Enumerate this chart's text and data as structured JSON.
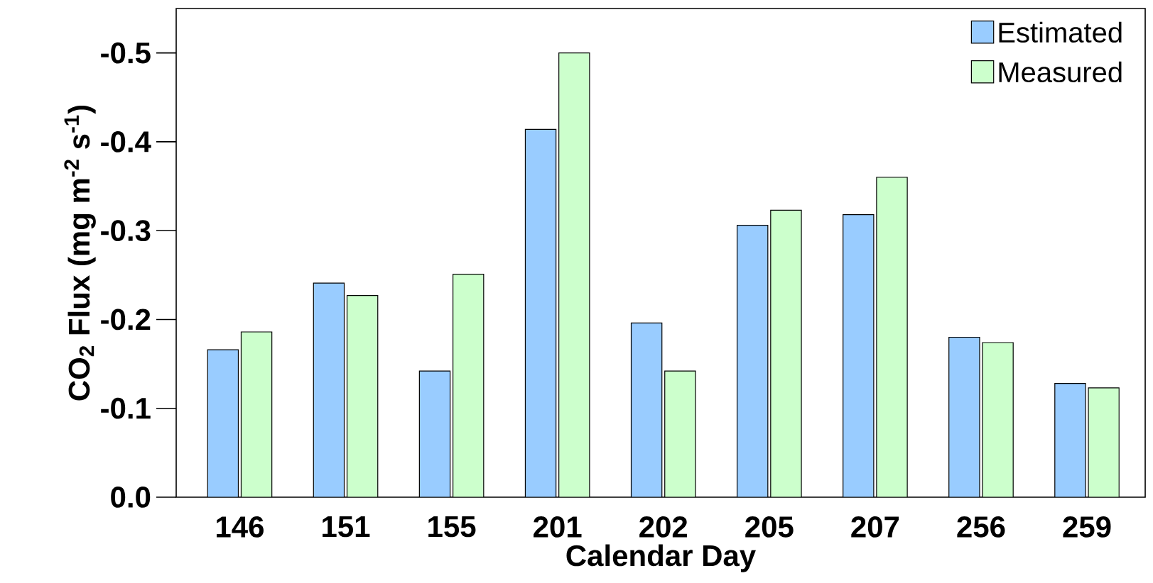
{
  "chart_data": {
    "type": "bar",
    "xlabel": "Calendar Day",
    "ylabel": "CO$_{2}$ Flux (mg  m$^{-2}$ s$^{-1}$)",
    "categories": [
      "146",
      "151",
      "155",
      "201",
      "202",
      "205",
      "207",
      "256",
      "259"
    ],
    "series": [
      {
        "name": "Estimated",
        "color": "#99ccff",
        "values": [
          -0.166,
          -0.241,
          -0.142,
          -0.414,
          -0.196,
          -0.306,
          -0.318,
          -0.18,
          -0.128
        ]
      },
      {
        "name": "Measured",
        "color": "#ccffcc",
        "values": [
          -0.186,
          -0.227,
          -0.251,
          -0.5,
          -0.142,
          -0.323,
          -0.36,
          -0.174,
          -0.123
        ]
      }
    ],
    "ylim": [
      0,
      -0.55
    ],
    "yticks": [
      {
        "value": 0,
        "label": "0.0"
      },
      -0.1,
      -0.2,
      -0.3,
      -0.4,
      -0.5
    ],
    "grid": false,
    "legend": "top right"
  }
}
